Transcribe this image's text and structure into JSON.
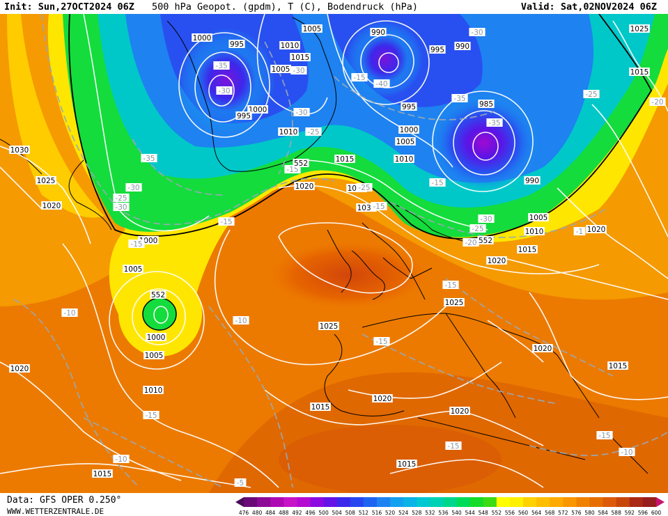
{
  "header": {
    "init": "Init: Sun,27OCT2024 06Z",
    "title": "500 hPa Geopot. (gpdm), T (C), Bodendruck (hPa)",
    "valid": "Valid: Sat,02NOV2024 06Z"
  },
  "footer": {
    "data_source": "Data: GFS OPER 0.250°",
    "website": "WWW.WETTERZENTRALE.DE"
  },
  "colorbar": {
    "ticks": [
      "476",
      "480",
      "484",
      "488",
      "492",
      "496",
      "500",
      "504",
      "508",
      "512",
      "516",
      "520",
      "524",
      "528",
      "532",
      "536",
      "540",
      "544",
      "548",
      "552",
      "556",
      "560",
      "564",
      "568",
      "572",
      "576",
      "580",
      "584",
      "588",
      "592",
      "596",
      "600"
    ],
    "colors": [
      "#4b0a5a",
      "#6a0a78",
      "#8c0a96",
      "#ad0ab4",
      "#c814c8",
      "#b40ad2",
      "#8c0ae1",
      "#6414e6",
      "#3c28eb",
      "#2846f0",
      "#1e64f0",
      "#1e82f0",
      "#14a0f0",
      "#0ab4e6",
      "#00c8d2",
      "#00d2b4",
      "#00d78c",
      "#00dc5a",
      "#14dc28",
      "#3cdc14",
      "#ffff00",
      "#fff000",
      "#ffd200",
      "#ffbe00",
      "#ffaa00",
      "#fa9600",
      "#f08200",
      "#e66e00",
      "#dc5a0a",
      "#c8460a",
      "#aa2814",
      "#961e1e",
      "#c8146e"
    ]
  },
  "pressure_labels": [
    {
      "id": "p1",
      "text": "1000"
    },
    {
      "id": "p2",
      "text": "995"
    },
    {
      "id": "p3",
      "text": "1010"
    },
    {
      "id": "p4",
      "text": "1015"
    },
    {
      "id": "p5",
      "text": "1005"
    },
    {
      "id": "p6",
      "text": "990"
    },
    {
      "id": "p7",
      "text": "995"
    },
    {
      "id": "p8",
      "text": "990"
    },
    {
      "id": "p9",
      "text": "1025"
    },
    {
      "id": "p10",
      "text": "1015"
    },
    {
      "id": "p11",
      "text": "1005"
    },
    {
      "id": "p12",
      "text": "1000"
    },
    {
      "id": "p13",
      "text": "995"
    },
    {
      "id": "p14",
      "text": "1010"
    },
    {
      "id": "p15",
      "text": "995"
    },
    {
      "id": "p16",
      "text": "985"
    },
    {
      "id": "p17",
      "text": "1000"
    },
    {
      "id": "p18",
      "text": "1005"
    },
    {
      "id": "p19",
      "text": "1010"
    },
    {
      "id": "p20",
      "text": "990"
    },
    {
      "id": "p21",
      "text": "1030"
    },
    {
      "id": "p22",
      "text": "1025"
    },
    {
      "id": "p23",
      "text": "1020"
    },
    {
      "id": "p24",
      "text": "1015"
    },
    {
      "id": "p25",
      "text": "1020"
    },
    {
      "id": "p26",
      "text": "1025"
    },
    {
      "id": "p27",
      "text": "1030"
    },
    {
      "id": "p28",
      "text": "1005"
    },
    {
      "id": "p29",
      "text": "1010"
    },
    {
      "id": "p30",
      "text": "1020"
    },
    {
      "id": "p31",
      "text": "1015"
    },
    {
      "id": "p32",
      "text": "1020"
    },
    {
      "id": "p33",
      "text": "1000"
    },
    {
      "id": "p34",
      "text": "1005"
    },
    {
      "id": "p35",
      "text": "1025"
    },
    {
      "id": "p36",
      "text": "1000"
    },
    {
      "id": "p37",
      "text": "1005"
    },
    {
      "id": "p38",
      "text": "1010"
    },
    {
      "id": "p39",
      "text": "1020"
    },
    {
      "id": "p40",
      "text": "1025"
    },
    {
      "id": "p41",
      "text": "1020"
    },
    {
      "id": "p42",
      "text": "1015"
    },
    {
      "id": "p43",
      "text": "1015"
    },
    {
      "id": "p44",
      "text": "1020"
    },
    {
      "id": "p45",
      "text": "1020"
    },
    {
      "id": "p46",
      "text": "1015"
    },
    {
      "id": "p47",
      "text": "1015"
    }
  ],
  "temperature_labels": [
    {
      "id": "t1",
      "text": "-35"
    },
    {
      "id": "t2",
      "text": "-30"
    },
    {
      "id": "t3",
      "text": "-30"
    },
    {
      "id": "t4",
      "text": "-25"
    },
    {
      "id": "t5",
      "text": "-15"
    },
    {
      "id": "t6",
      "text": "-40"
    },
    {
      "id": "t7",
      "text": "-30"
    },
    {
      "id": "t8",
      "text": "-30"
    },
    {
      "id": "t9",
      "text": "-35"
    },
    {
      "id": "t10",
      "text": "-35"
    },
    {
      "id": "t11",
      "text": "-25"
    },
    {
      "id": "t12",
      "text": "-20"
    },
    {
      "id": "t13",
      "text": "-35"
    },
    {
      "id": "t14",
      "text": "-30"
    },
    {
      "id": "t15",
      "text": "-25"
    },
    {
      "id": "t16",
      "text": "-30"
    },
    {
      "id": "t17",
      "text": "-15"
    },
    {
      "id": "t18",
      "text": "-25"
    },
    {
      "id": "t19",
      "text": "-15"
    },
    {
      "id": "t20",
      "text": "-30"
    },
    {
      "id": "t21",
      "text": "-25"
    },
    {
      "id": "t22",
      "text": "-20"
    },
    {
      "id": "t23",
      "text": "-15"
    },
    {
      "id": "t24",
      "text": "-10"
    },
    {
      "id": "t25",
      "text": "-10"
    },
    {
      "id": "t26",
      "text": "-15"
    },
    {
      "id": "t27",
      "text": "-15"
    },
    {
      "id": "t28",
      "text": "-15"
    },
    {
      "id": "t29",
      "text": "-15"
    },
    {
      "id": "t30",
      "text": "-10"
    },
    {
      "id": "t31",
      "text": "-10"
    },
    {
      "id": "t32",
      "text": "-15"
    },
    {
      "id": "t33",
      "text": "-5"
    },
    {
      "id": "t34",
      "text": "-15"
    },
    {
      "id": "t35",
      "text": "-1"
    },
    {
      "id": "t36",
      "text": "-15"
    }
  ],
  "geopotential_labels": [
    {
      "id": "g1",
      "text": "552"
    },
    {
      "id": "g2",
      "text": "552"
    },
    {
      "id": "g3",
      "text": "552"
    }
  ]
}
